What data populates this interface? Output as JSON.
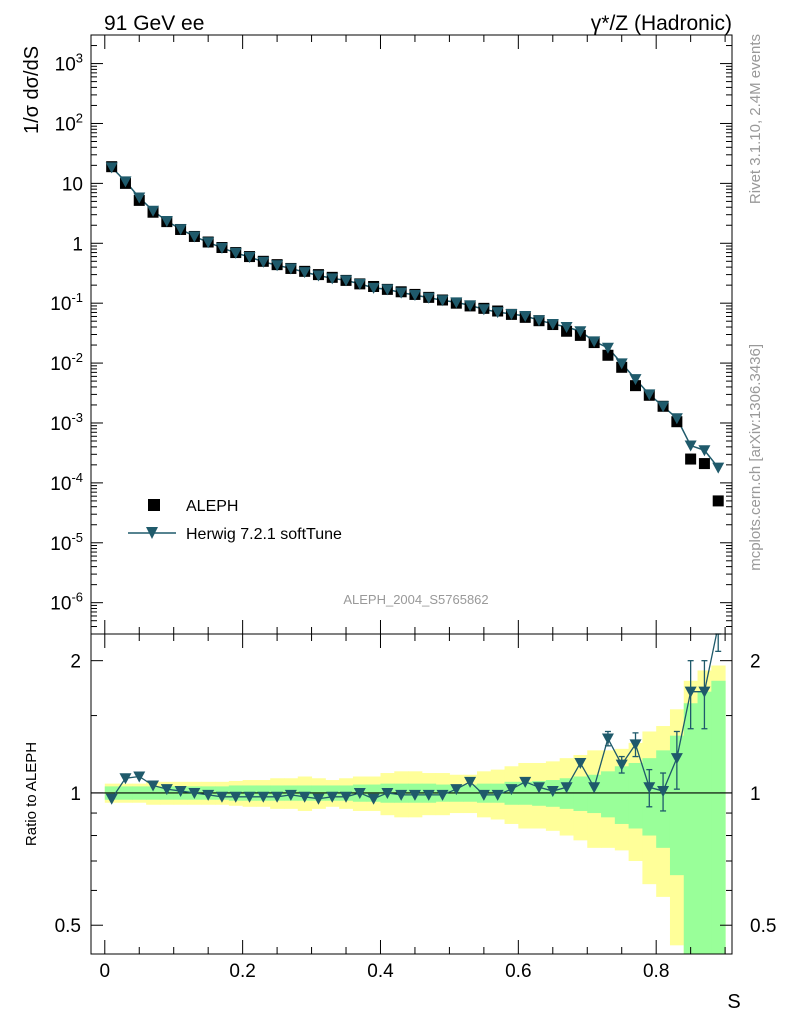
{
  "header": {
    "left": "91 GeV ee",
    "right": "γ*/Z (Hadronic)"
  },
  "side_text": {
    "rivet": "Rivet 3.1.10,  2.4M events",
    "mcplots": "mcplots.cern.ch [arXiv:1306.3436]"
  },
  "analysis_label": "ALEPH_2004_S5765862",
  "colors": {
    "data": "#000000",
    "mc": "#1f5a6b",
    "band_inner": "#99ff99",
    "band_outer": "#ffff99"
  },
  "chart_data": [
    {
      "type": "scatter",
      "panel": "main",
      "ylabel": "1/σ  dσ/dS",
      "yscale": "log",
      "ylim": [
        3e-07,
        3000
      ],
      "xlim": [
        -0.02,
        0.91
      ],
      "y_ticks": [
        "10^3",
        "10^2",
        "10",
        "1",
        "10^-1",
        "10^-2",
        "10^-3",
        "10^-4",
        "10^-5",
        "10^-6"
      ],
      "legend": {
        "placement": "bottom-left",
        "entries": [
          "ALEPH",
          "Herwig 7.2.1 softTune"
        ]
      },
      "x": [
        0.01,
        0.03,
        0.05,
        0.07,
        0.09,
        0.11,
        0.13,
        0.15,
        0.17,
        0.19,
        0.21,
        0.23,
        0.25,
        0.27,
        0.29,
        0.31,
        0.33,
        0.35,
        0.37,
        0.39,
        0.41,
        0.43,
        0.45,
        0.47,
        0.49,
        0.51,
        0.53,
        0.55,
        0.57,
        0.59,
        0.61,
        0.63,
        0.65,
        0.67,
        0.69,
        0.71,
        0.73,
        0.75,
        0.77,
        0.79,
        0.81,
        0.83,
        0.85,
        0.87,
        0.89
      ],
      "series": [
        {
          "name": "ALEPH",
          "marker": "square",
          "values": [
            19.0,
            10.0,
            5.2,
            3.3,
            2.3,
            1.7,
            1.3,
            1.05,
            0.85,
            0.7,
            0.6,
            0.5,
            0.44,
            0.38,
            0.34,
            0.3,
            0.27,
            0.24,
            0.21,
            0.19,
            0.17,
            0.155,
            0.14,
            0.125,
            0.113,
            0.1,
            0.09,
            0.082,
            0.074,
            0.065,
            0.058,
            0.051,
            0.044,
            0.034,
            0.029,
            0.022,
            0.0135,
            0.0085,
            0.0042,
            0.0029,
            0.0019,
            0.00105,
            0.00025,
            0.00021,
            5e-05
          ]
        },
        {
          "name": "Herwig 7.2.1 softTune",
          "marker": "triangle-down",
          "values": [
            18.5,
            10.8,
            5.8,
            3.5,
            2.35,
            1.72,
            1.3,
            1.04,
            0.84,
            0.69,
            0.59,
            0.49,
            0.43,
            0.38,
            0.33,
            0.29,
            0.26,
            0.24,
            0.21,
            0.18,
            0.17,
            0.15,
            0.137,
            0.123,
            0.112,
            0.103,
            0.092,
            0.079,
            0.071,
            0.066,
            0.061,
            0.052,
            0.045,
            0.04,
            0.034,
            0.023,
            0.018,
            0.0099,
            0.0054,
            0.003,
            0.0019,
            0.0012,
            0.00042,
            0.00035,
            0.00018
          ]
        }
      ]
    },
    {
      "type": "line",
      "panel": "ratio",
      "xlabel": "S",
      "ylabel": "Ratio to ALEPH",
      "yscale": "log",
      "ylim": [
        0.43,
        2.3
      ],
      "y_ticks": [
        "0.5",
        "1",
        "2"
      ],
      "x_ticks": [
        "0",
        "0.2",
        "0.4",
        "0.6",
        "0.8"
      ],
      "xlim": [
        -0.02,
        0.91
      ],
      "x": [
        0.01,
        0.03,
        0.05,
        0.07,
        0.09,
        0.11,
        0.13,
        0.15,
        0.17,
        0.19,
        0.21,
        0.23,
        0.25,
        0.27,
        0.29,
        0.31,
        0.33,
        0.35,
        0.37,
        0.39,
        0.41,
        0.43,
        0.45,
        0.47,
        0.49,
        0.51,
        0.53,
        0.55,
        0.57,
        0.59,
        0.61,
        0.63,
        0.65,
        0.67,
        0.69,
        0.71,
        0.73,
        0.75,
        0.77,
        0.79,
        0.81,
        0.83,
        0.85,
        0.87,
        0.89
      ],
      "reference": 1,
      "band_inner_half_width": [
        0.035,
        0.035,
        0.035,
        0.035,
        0.035,
        0.035,
        0.035,
        0.035,
        0.035,
        0.04,
        0.04,
        0.04,
        0.04,
        0.04,
        0.04,
        0.04,
        0.04,
        0.04,
        0.045,
        0.045,
        0.05,
        0.05,
        0.05,
        0.05,
        0.045,
        0.045,
        0.045,
        0.05,
        0.05,
        0.06,
        0.06,
        0.065,
        0.07,
        0.08,
        0.09,
        0.1,
        0.12,
        0.15,
        0.17,
        0.2,
        0.25,
        0.35,
        0.6,
        0.7,
        0.8
      ],
      "band_outer_half_width": [
        0.05,
        0.05,
        0.05,
        0.06,
        0.06,
        0.06,
        0.06,
        0.06,
        0.06,
        0.065,
        0.07,
        0.07,
        0.08,
        0.08,
        0.09,
        0.08,
        0.07,
        0.08,
        0.09,
        0.09,
        0.11,
        0.12,
        0.12,
        0.11,
        0.11,
        0.1,
        0.1,
        0.12,
        0.13,
        0.15,
        0.17,
        0.17,
        0.18,
        0.2,
        0.22,
        0.25,
        0.25,
        0.26,
        0.3,
        0.38,
        0.42,
        0.55,
        0.8,
        0.9,
        0.95
      ],
      "series": [
        {
          "name": "Herwig 7.2.1 softTune",
          "values": [
            0.97,
            1.08,
            1.09,
            1.04,
            1.02,
            1.01,
            1.0,
            0.99,
            0.98,
            0.98,
            0.98,
            0.98,
            0.98,
            0.99,
            0.98,
            0.97,
            0.98,
            0.98,
            1.0,
            0.97,
            1.0,
            0.99,
            0.99,
            0.99,
            0.99,
            1.02,
            1.06,
            0.99,
            0.99,
            1.02,
            1.06,
            1.03,
            1.01,
            1.03,
            1.17,
            1.03,
            1.33,
            1.16,
            1.29,
            1.03,
            1.01,
            1.2,
            1.7,
            1.7,
            2.4
          ],
          "errors": [
            0.005,
            0.005,
            0.005,
            0.005,
            0.005,
            0.005,
            0.005,
            0.005,
            0.005,
            0.005,
            0.005,
            0.005,
            0.005,
            0.005,
            0.005,
            0.005,
            0.005,
            0.005,
            0.005,
            0.005,
            0.005,
            0.005,
            0.005,
            0.005,
            0.005,
            0.005,
            0.005,
            0.01,
            0.01,
            0.01,
            0.01,
            0.01,
            0.01,
            0.02,
            0.02,
            0.02,
            0.05,
            0.05,
            0.08,
            0.1,
            0.1,
            0.18,
            0.3,
            0.3,
            0.3
          ]
        }
      ]
    }
  ]
}
